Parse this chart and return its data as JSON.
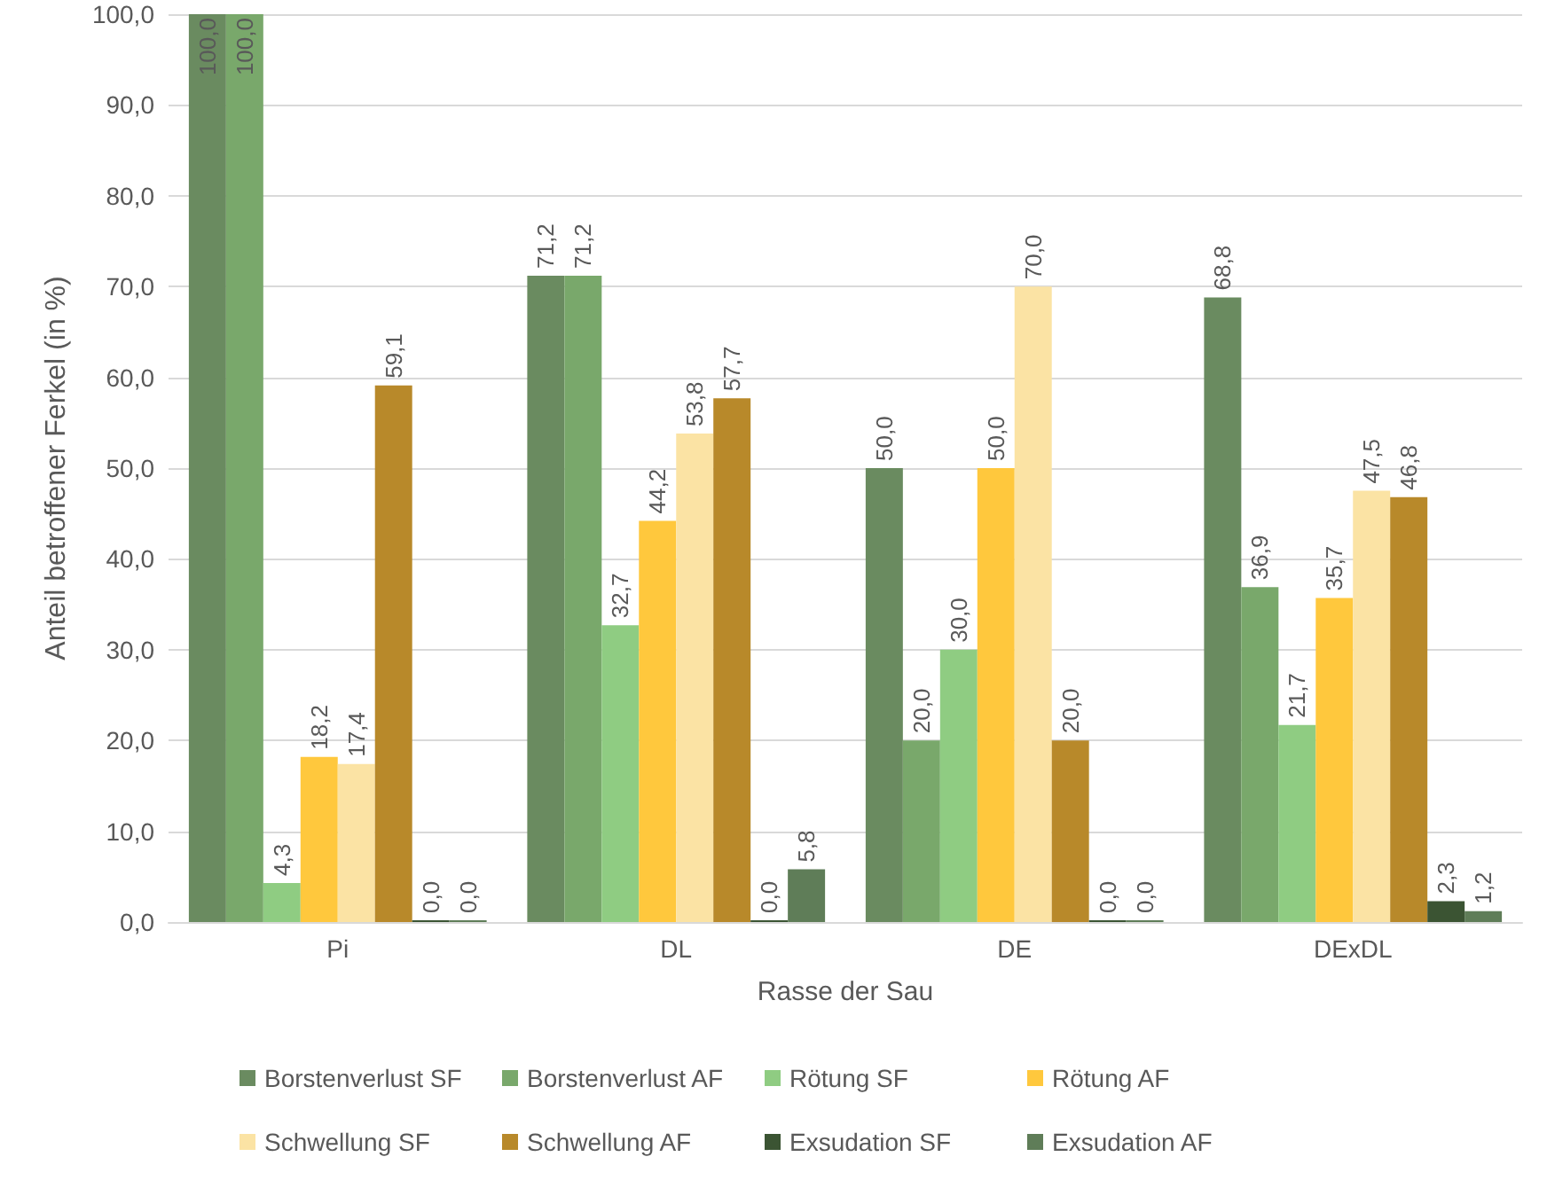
{
  "chart_data": {
    "type": "bar",
    "xlabel": "Rasse der Sau",
    "ylabel": "Anteil betroffener Ferkel (in %)",
    "categories": [
      "Pi",
      "DL",
      "DE",
      "DExDL"
    ],
    "series": [
      {
        "name": "Borstenverlust SF",
        "color": "#6a8b60",
        "values": [
          100.0,
          71.2,
          50.0,
          68.8
        ],
        "value_labels": [
          "100,0",
          "71,2",
          "50,0",
          "68,8"
        ]
      },
      {
        "name": "Borstenverlust AF",
        "color": "#79a86b",
        "values": [
          100.0,
          71.2,
          20.0,
          36.9
        ],
        "value_labels": [
          "100,0",
          "71,2",
          "20,0",
          "36,9"
        ]
      },
      {
        "name": "Rötung SF",
        "color": "#8fcc82",
        "values": [
          4.3,
          32.7,
          30.0,
          21.7
        ],
        "value_labels": [
          "4,3",
          "32,7",
          "30,0",
          "21,7"
        ]
      },
      {
        "name": "Rötung AF",
        "color": "#ffc83d",
        "values": [
          18.2,
          44.2,
          50.0,
          35.7
        ],
        "value_labels": [
          "18,2",
          "44,2",
          "50,0",
          "35,7"
        ]
      },
      {
        "name": "Schwellung SF",
        "color": "#fbe3a4",
        "values": [
          17.4,
          53.8,
          70.0,
          47.5
        ],
        "value_labels": [
          "17,4",
          "53,8",
          "70,0",
          "47,5"
        ]
      },
      {
        "name": "Schwellung AF",
        "color": "#b8892a",
        "values": [
          59.1,
          57.7,
          20.0,
          46.8
        ],
        "value_labels": [
          "59,1",
          "57,7",
          "20,0",
          "46,8"
        ]
      },
      {
        "name": "Exsudation SF",
        "color": "#3b5433",
        "values": [
          0.0,
          0.0,
          0.0,
          2.3
        ],
        "value_labels": [
          "0,0",
          "0,0",
          "0,0",
          "2,3"
        ]
      },
      {
        "name": "Exsudation AF",
        "color": "#5f7d58",
        "values": [
          0.0,
          5.8,
          0.0,
          1.2
        ],
        "value_labels": [
          "0,0",
          "5,8",
          "0,0",
          "1,2"
        ]
      }
    ],
    "ylim": [
      0,
      100
    ],
    "yticks": [
      {
        "value": 0,
        "label": "0,0"
      },
      {
        "value": 10,
        "label": "10,0"
      },
      {
        "value": 20,
        "label": "20,0"
      },
      {
        "value": 30,
        "label": "30,0"
      },
      {
        "value": 40,
        "label": "40,0"
      },
      {
        "value": 50,
        "label": "50,0"
      },
      {
        "value": 60,
        "label": "60,0"
      },
      {
        "value": 70,
        "label": "70,0"
      },
      {
        "value": 80,
        "label": "80,0"
      },
      {
        "value": 90,
        "label": "90,0"
      },
      {
        "value": 100,
        "label": "100,0"
      }
    ],
    "grid": "y",
    "legend": "bottom"
  }
}
